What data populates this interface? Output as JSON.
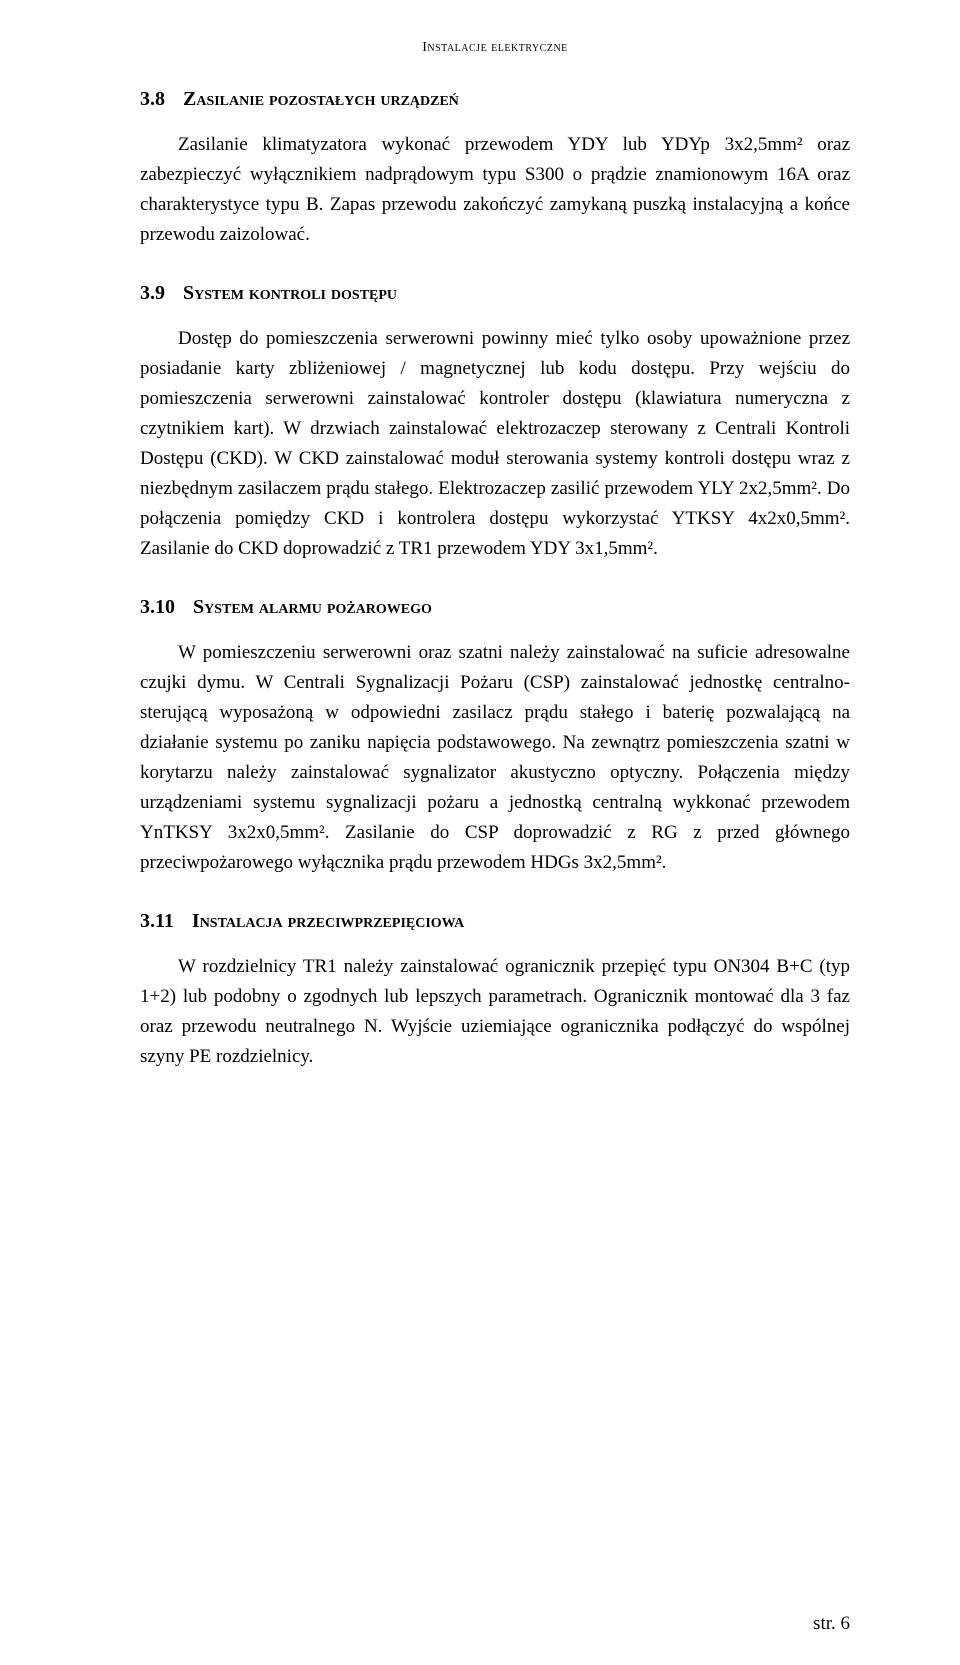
{
  "runningHead": "Instalacje elektryczne",
  "sections": [
    {
      "number": "3.8",
      "title": "Zasilanie pozostałych urządzeń",
      "paragraphs": [
        "Zasilanie klimatyzatora wykonać przewodem YDY lub YDYp 3x2,5mm² oraz zabezpieczyć wyłącznikiem nadprądowym typu S300 o prądzie znamionowym 16A oraz charakterystyce typu B. Zapas przewodu zakończyć zamykaną puszką instalacyjną a końce przewodu zaizolować."
      ]
    },
    {
      "number": "3.9",
      "title": "System kontroli dostępu",
      "paragraphs": [
        "Dostęp do pomieszczenia serwerowni powinny mieć tylko osoby upoważnione przez posiadanie karty zbliżeniowej / magnetycznej lub kodu dostępu. Przy wejściu do pomieszczenia serwerowni zainstalować kontroler dostępu (klawiatura numeryczna z czytnikiem kart). W drzwiach zainstalować elektrozaczep sterowany z Centrali Kontroli Dostępu (CKD). W CKD zainstalować moduł sterowania systemy kontroli dostępu wraz z niezbędnym zasilaczem prądu stałego. Elektrozaczep zasilić przewodem YLY 2x2,5mm². Do połączenia pomiędzy CKD i kontrolera dostępu wykorzystać YTKSY 4x2x0,5mm². Zasilanie do CKD doprowadzić z TR1 przewodem YDY 3x1,5mm²."
      ]
    },
    {
      "number": "3.10",
      "title": "System alarmu pożarowego",
      "paragraphs": [
        "W pomieszczeniu serwerowni oraz szatni należy zainstalować na suficie adresowalne czujki dymu. W Centrali Sygnalizacji Pożaru (CSP) zainstalować jednostkę centralno-sterującą wyposażoną w odpowiedni zasilacz prądu stałego i baterię pozwalającą na działanie systemu po zaniku napięcia podstawowego. Na zewnątrz pomieszczenia szatni w korytarzu należy zainstalować sygnalizator akustyczno optyczny. Połączenia między urządzeniami systemu sygnalizacji pożaru a jednostką centralną wykkonać przewodem YnTKSY 3x2x0,5mm². Zasilanie do CSP doprowadzić z RG z przed głównego przeciwpożarowego wyłącznika prądu przewodem HDGs 3x2,5mm²."
      ]
    },
    {
      "number": "3.11",
      "title": "Instalacja przeciwprzepięciowa",
      "paragraphs": [
        "W rozdzielnicy TR1 należy zainstalować ogranicznik przepięć typu ON304 B+C (typ 1+2) lub podobny o zgodnych lub lepszych parametrach. Ogranicznik montować dla 3 faz oraz przewodu neutralnego N. Wyjście uziemiające ogranicznika podłączyć do wspólnej szyny PE rozdzielnicy."
      ]
    }
  ],
  "pageNumber": "str. 6"
}
